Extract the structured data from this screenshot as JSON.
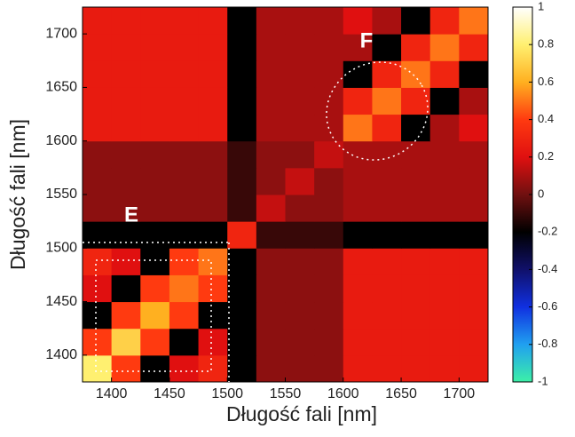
{
  "chart_data": {
    "type": "heatmap",
    "x_label": "Długość fali [nm]",
    "y_label": "Długość fali [nm]",
    "annotations": [
      "E",
      "F"
    ],
    "x": [
      1387.5,
      1412.5,
      1437.5,
      1462.5,
      1487.5,
      1512.5,
      1537.5,
      1562.5,
      1587.5,
      1612.5,
      1637.5,
      1662.5,
      1687.5,
      1712.5
    ],
    "y": [
      1387.5,
      1412.5,
      1437.5,
      1462.5,
      1487.5,
      1512.5,
      1537.5,
      1562.5,
      1587.5,
      1612.5,
      1637.5,
      1662.5,
      1687.5,
      1712.5
    ],
    "values": [
      [
        0.8,
        0.4,
        -0.2,
        0.2,
        0.3,
        -0.2,
        0.05,
        0.05,
        0.05,
        0.25,
        0.25,
        0.25,
        0.25,
        0.25
      ],
      [
        0.4,
        0.7,
        0.4,
        -0.2,
        0.2,
        -0.2,
        0.05,
        0.05,
        0.05,
        0.25,
        0.25,
        0.25,
        0.25,
        0.25
      ],
      [
        -0.2,
        0.4,
        0.6,
        0.4,
        -0.2,
        -0.2,
        0.05,
        0.05,
        0.05,
        0.25,
        0.25,
        0.25,
        0.25,
        0.25
      ],
      [
        0.2,
        -0.2,
        0.4,
        0.5,
        0.4,
        -0.2,
        0.05,
        0.05,
        0.05,
        0.25,
        0.25,
        0.25,
        0.25,
        0.25
      ],
      [
        0.3,
        0.2,
        -0.2,
        0.4,
        0.5,
        -0.2,
        0.05,
        0.05,
        0.05,
        0.25,
        0.25,
        0.25,
        0.25,
        0.25
      ],
      [
        -0.2,
        -0.2,
        -0.2,
        -0.2,
        -0.2,
        0.3,
        -0.1,
        -0.1,
        -0.1,
        -0.2,
        -0.2,
        -0.2,
        -0.2,
        -0.2
      ],
      [
        0.05,
        0.05,
        0.05,
        0.05,
        0.05,
        -0.1,
        0.15,
        0.05,
        0.05,
        0.1,
        0.1,
        0.1,
        0.1,
        0.1
      ],
      [
        0.05,
        0.05,
        0.05,
        0.05,
        0.05,
        -0.1,
        0.05,
        0.15,
        0.05,
        0.1,
        0.1,
        0.1,
        0.1,
        0.1
      ],
      [
        0.05,
        0.05,
        0.05,
        0.05,
        0.05,
        -0.1,
        0.05,
        0.05,
        0.15,
        0.1,
        0.1,
        0.1,
        0.1,
        0.1
      ],
      [
        0.25,
        0.25,
        0.25,
        0.25,
        0.25,
        -0.2,
        0.1,
        0.1,
        0.1,
        0.5,
        0.3,
        -0.2,
        0.1,
        0.2
      ],
      [
        0.25,
        0.25,
        0.25,
        0.25,
        0.25,
        -0.2,
        0.1,
        0.1,
        0.1,
        0.3,
        0.5,
        0.3,
        -0.2,
        0.1
      ],
      [
        0.25,
        0.25,
        0.25,
        0.25,
        0.25,
        -0.2,
        0.1,
        0.1,
        0.1,
        -0.2,
        0.3,
        0.5,
        0.3,
        -0.2
      ],
      [
        0.25,
        0.25,
        0.25,
        0.25,
        0.25,
        -0.2,
        0.1,
        0.1,
        0.1,
        0.1,
        -0.2,
        0.3,
        0.5,
        0.3
      ],
      [
        0.25,
        0.25,
        0.25,
        0.25,
        0.25,
        -0.2,
        0.1,
        0.1,
        0.1,
        0.2,
        0.1,
        -0.2,
        0.3,
        0.5
      ]
    ],
    "xlim": [
      1375,
      1725
    ],
    "xticks": [
      1400,
      1450,
      1500,
      1550,
      1600,
      1650,
      1700
    ],
    "ylim": [
      1375,
      1725
    ],
    "yticks": [
      1400,
      1450,
      1500,
      1550,
      1600,
      1650,
      1700
    ],
    "zlim": [
      -1,
      1
    ],
    "zticks": [
      -1,
      -0.8,
      -0.6,
      -0.4,
      -0.2,
      0,
      0.2,
      0.4,
      0.6,
      0.8,
      1
    ],
    "colorscale": [
      "#3cf0a8",
      "#20a0f0",
      "#1030e0",
      "#10106a",
      "#000000",
      "#701010",
      "#e01010",
      "#ff3a10",
      "#ffb020",
      "#fff070",
      "#ffffff"
    ]
  }
}
